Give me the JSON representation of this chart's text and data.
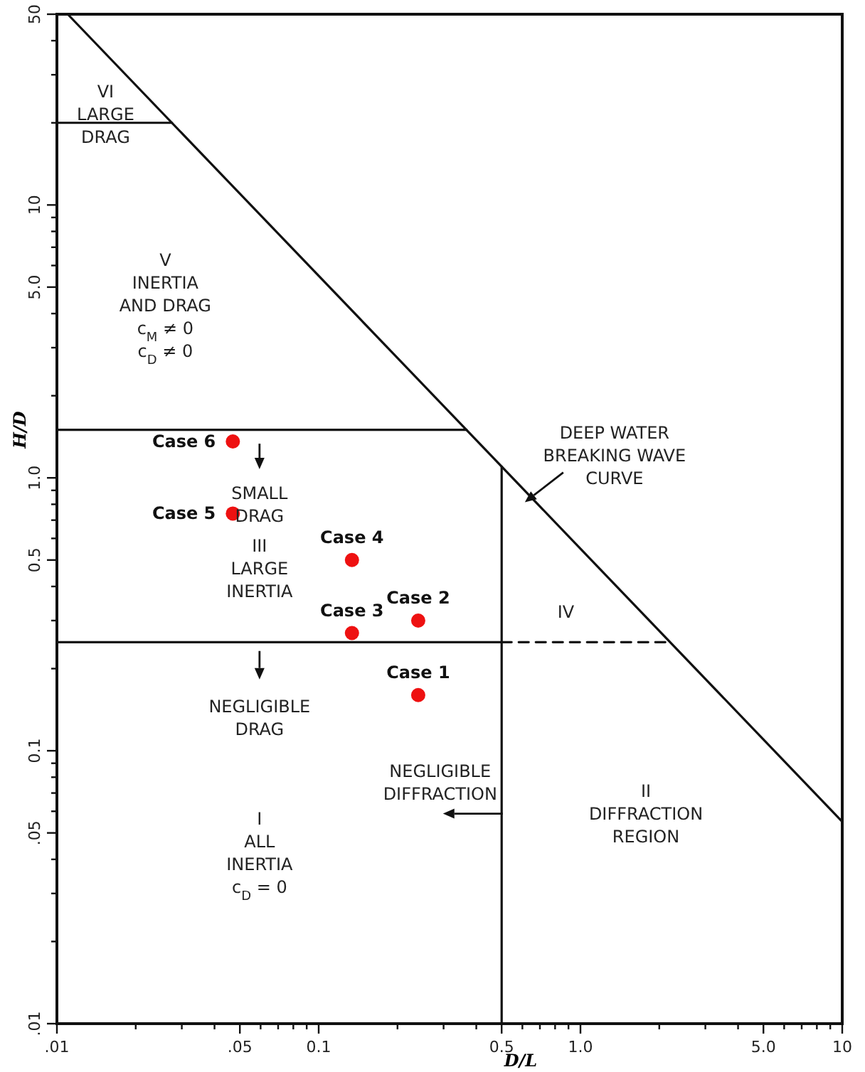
{
  "chart_data": {
    "type": "line",
    "xlabel": "D/L",
    "ylabel": "H/D",
    "log": "xy",
    "grid": false,
    "xlim": [
      0.01,
      10
    ],
    "ylim": [
      0.01,
      50
    ],
    "xticks": [
      {
        "value": 0.01,
        "label": ".01"
      },
      {
        "value": 0.02,
        "label": null
      },
      {
        "value": 0.03,
        "label": null
      },
      {
        "value": 0.04,
        "label": null
      },
      {
        "value": 0.05,
        "label": ".05"
      },
      {
        "value": 0.06,
        "label": null
      },
      {
        "value": 0.07,
        "label": null
      },
      {
        "value": 0.08,
        "label": null
      },
      {
        "value": 0.09,
        "label": null
      },
      0.1,
      {
        "value": 0.2,
        "label": null
      },
      {
        "value": 0.3,
        "label": null
      },
      {
        "value": 0.4,
        "label": null
      },
      0.5,
      {
        "value": 0.6,
        "label": null
      },
      {
        "value": 0.7,
        "label": null
      },
      {
        "value": 0.8,
        "label": null
      },
      {
        "value": 0.9,
        "label": null
      },
      {
        "value": 1,
        "label": "1.0"
      },
      {
        "value": 2,
        "label": null
      },
      {
        "value": 3,
        "label": null
      },
      {
        "value": 4,
        "label": null
      },
      {
        "value": 5,
        "label": "5.0"
      },
      {
        "value": 6,
        "label": null
      },
      {
        "value": 7,
        "label": null
      },
      {
        "value": 8,
        "label": null
      },
      {
        "value": 9,
        "label": null
      },
      10
    ],
    "yticks": [
      {
        "value": 0.01,
        "label": ".01"
      },
      {
        "value": 0.02,
        "label": null
      },
      {
        "value": 0.03,
        "label": null
      },
      {
        "value": 0.04,
        "label": null
      },
      {
        "value": 0.05,
        "label": ".05"
      },
      {
        "value": 0.06,
        "label": null
      },
      {
        "value": 0.07,
        "label": null
      },
      {
        "value": 0.08,
        "label": null
      },
      {
        "value": 0.09,
        "label": null
      },
      0.1,
      {
        "value": 0.2,
        "label": null
      },
      {
        "value": 0.3,
        "label": null
      },
      {
        "value": 0.4,
        "label": null
      },
      0.5,
      {
        "value": 0.6,
        "label": null
      },
      {
        "value": 0.7,
        "label": null
      },
      {
        "value": 0.8,
        "label": null
      },
      {
        "value": 0.9,
        "label": null
      },
      {
        "value": 1,
        "label": "1.0"
      },
      {
        "value": 2,
        "label": null
      },
      {
        "value": 3,
        "label": null
      },
      {
        "value": 4,
        "label": null
      },
      {
        "value": 5,
        "label": "5.0"
      },
      {
        "value": 6,
        "label": null
      },
      {
        "value": 7,
        "label": null
      },
      {
        "value": 8,
        "label": null
      },
      {
        "value": 9,
        "label": null
      },
      10,
      {
        "value": 20,
        "label": null
      },
      {
        "value": 30,
        "label": null
      },
      {
        "value": 40,
        "label": null
      },
      50
    ],
    "series": [
      {
        "color": "#111111",
        "line_style": "solid",
        "x": [
          0.011,
          10
        ],
        "values": [
          50,
          0.055
        ]
      },
      {
        "color": "#111111",
        "line_style": "solid",
        "x": [
          0.01,
          0.0275
        ],
        "values": [
          20,
          20
        ]
      },
      {
        "color": "#111111",
        "line_style": "solid",
        "x": [
          0.01,
          0.367
        ],
        "values": [
          1.5,
          1.5
        ]
      },
      {
        "color": "#111111",
        "line_style": "solid",
        "x": [
          0.01,
          0.5
        ],
        "values": [
          0.25,
          0.25
        ]
      },
      {
        "color": "#111111",
        "line_style": "dashed",
        "x": [
          0.5,
          2.2
        ],
        "values": [
          0.25,
          0.25
        ]
      },
      {
        "color": "#111111",
        "line_style": "solid",
        "x": [
          0.5,
          0.5
        ],
        "values": [
          0.01,
          1.1
        ]
      },
      {
        "type": "scatter",
        "name": "Case 1",
        "marker": "circle",
        "color": "#ee1111",
        "x": [
          0.24
        ],
        "values": [
          0.16
        ]
      },
      {
        "type": "scatter",
        "name": "Case 2",
        "marker": "circle",
        "color": "#ee1111",
        "x": [
          0.24
        ],
        "values": [
          0.3
        ]
      },
      {
        "type": "scatter",
        "name": "Case 3",
        "marker": "circle",
        "color": "#ee1111",
        "x": [
          0.134
        ],
        "values": [
          0.27
        ]
      },
      {
        "type": "scatter",
        "name": "Case 4",
        "marker": "circle",
        "color": "#ee1111",
        "x": [
          0.134
        ],
        "values": [
          0.5
        ]
      },
      {
        "type": "scatter",
        "name": "Case 5",
        "marker": "circle",
        "color": "#ee1111",
        "x": [
          0.047
        ],
        "values": [
          0.74
        ]
      },
      {
        "type": "scatter",
        "name": "Case 6",
        "marker": "circle",
        "color": "#ee1111",
        "x": [
          0.047
        ],
        "values": [
          1.36
        ]
      }
    ],
    "annotations": [
      "VI\nLARGE\nDRAG",
      "V\nINERTIA\nAND DRAG\nc$_{M}$ ≠ 0\nc$_{D}$ ≠ 0",
      "SMALL\nDRAG",
      "III\nLARGE\nINERTIA",
      "NEGLIGIBLE\nDRAG",
      "I\nALL\nINERTIA\nc$_{D}$ = 0",
      "NEGLIGIBLE\nDIFFRACTION",
      "II\nDIFFRACTION\nREGION",
      "IV",
      "DEEP WATER\nBREAKING WAVE\nCURVE"
    ]
  }
}
